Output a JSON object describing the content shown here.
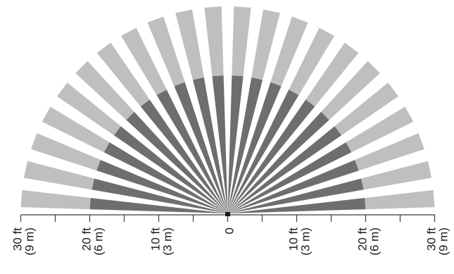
{
  "diagram": {
    "colors": {
      "near_zone": "#6e6e6e",
      "far_zone": "#bfbfbf",
      "axis": "#3a3a3a",
      "origin": "#1a1a1a",
      "background": "#ffffff"
    },
    "segment_count": 22,
    "span_degrees": 180,
    "max_range_ft": 30,
    "near_range_ft": 20,
    "axis_ticks": [
      {
        "value_ft": -30,
        "label_top": "30 ft",
        "label_bottom": "(9 m)"
      },
      {
        "value_ft": -25,
        "label_top": "",
        "label_bottom": ""
      },
      {
        "value_ft": -20,
        "label_top": "20 ft",
        "label_bottom": "(6 m)"
      },
      {
        "value_ft": -15,
        "label_top": "",
        "label_bottom": ""
      },
      {
        "value_ft": -10,
        "label_top": "10 ft",
        "label_bottom": "(3 m)"
      },
      {
        "value_ft": -5,
        "label_top": "",
        "label_bottom": ""
      },
      {
        "value_ft": 0,
        "label_top": "0",
        "label_bottom": ""
      },
      {
        "value_ft": 5,
        "label_top": "",
        "label_bottom": ""
      },
      {
        "value_ft": 10,
        "label_top": "10 ft",
        "label_bottom": "(3 m)"
      },
      {
        "value_ft": 15,
        "label_top": "",
        "label_bottom": ""
      },
      {
        "value_ft": 20,
        "label_top": "20 ft",
        "label_bottom": "(6 m)"
      },
      {
        "value_ft": 25,
        "label_top": "",
        "label_bottom": ""
      },
      {
        "value_ft": 30,
        "label_top": "30 ft",
        "label_bottom": "(9 m)"
      }
    ]
  }
}
